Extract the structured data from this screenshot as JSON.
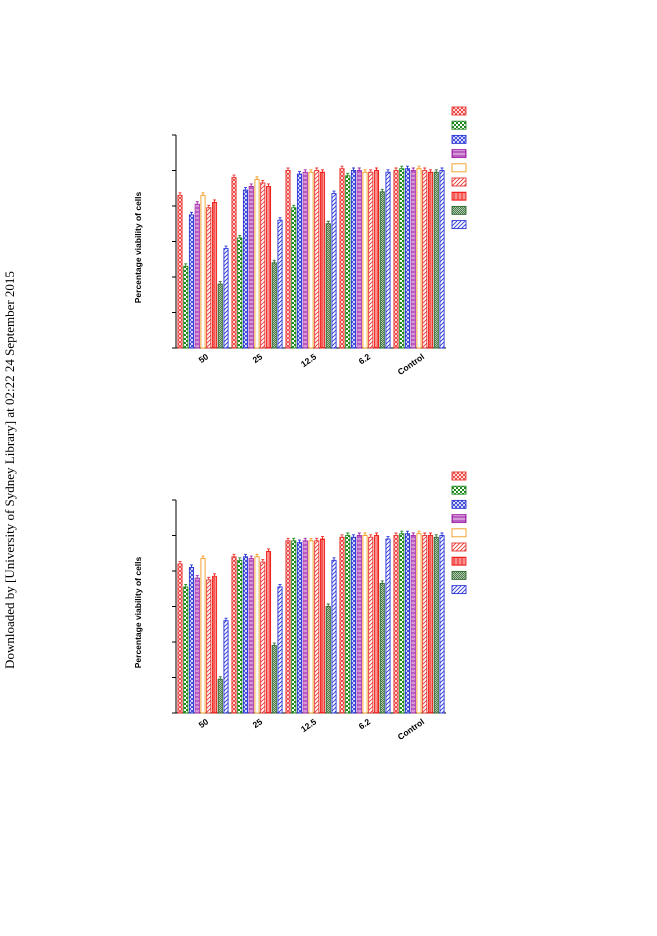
{
  "watermark": "Downloaded by [University of Sydney Library] at 02:22 24 September 2015",
  "chart_data": [
    {
      "type": "bar",
      "ylabel": "Percentage viability of cells",
      "categories": [
        "50",
        "25",
        "12.5",
        "6.2",
        "Control"
      ],
      "ylim": [
        0,
        120
      ],
      "grid": false,
      "legend": "top-right",
      "series": [
        {
          "color": "#e8332f",
          "values": [
            86,
            96,
            100,
            101,
            100
          ]
        },
        {
          "color": "#1e8a1e",
          "values": [
            46,
            62,
            79,
            97,
            101
          ]
        },
        {
          "color": "#2a36d6",
          "values": [
            75,
            89,
            98,
            100,
            101
          ]
        },
        {
          "color": "#a020a8",
          "values": [
            81,
            91,
            99,
            100,
            100
          ]
        },
        {
          "color": "#f29a1e",
          "values": [
            86,
            95,
            99,
            99,
            101
          ]
        },
        {
          "color": "#e8332f",
          "values": [
            79,
            93,
            100,
            99,
            100
          ]
        },
        {
          "color": "#f0201c",
          "values": [
            82,
            91,
            99,
            100,
            99
          ]
        },
        {
          "color": "#2f6a2f",
          "values": [
            36,
            48,
            70,
            88,
            99
          ]
        },
        {
          "color": "#2a36d6",
          "values": [
            56,
            72,
            87,
            99,
            100
          ]
        }
      ]
    },
    {
      "type": "bar",
      "ylabel": "Percentage viability of cells",
      "categories": [
        "50",
        "25",
        "12.5",
        "6.2",
        "Control"
      ],
      "ylim": [
        0,
        120
      ],
      "grid": false,
      "legend": "top-right",
      "series": [
        {
          "color": "#e8332f",
          "values": [
            84,
            88,
            97,
            99,
            100
          ]
        },
        {
          "color": "#1e8a1e",
          "values": [
            71,
            86,
            97,
            100,
            101
          ]
        },
        {
          "color": "#2a36d6",
          "values": [
            82,
            88,
            96,
            99,
            101
          ]
        },
        {
          "color": "#a020a8",
          "values": [
            76,
            87,
            97,
            100,
            100
          ]
        },
        {
          "color": "#f29a1e",
          "values": [
            87,
            88,
            97,
            100,
            101
          ]
        },
        {
          "color": "#e8332f",
          "values": [
            75,
            85,
            97,
            99,
            100
          ]
        },
        {
          "color": "#f0201c",
          "values": [
            77,
            91,
            98,
            100,
            100
          ]
        },
        {
          "color": "#2f6a2f",
          "values": [
            19,
            38,
            60,
            73,
            99
          ]
        },
        {
          "color": "#2a36d6",
          "values": [
            52,
            71,
            86,
            98,
            100
          ]
        }
      ]
    }
  ]
}
